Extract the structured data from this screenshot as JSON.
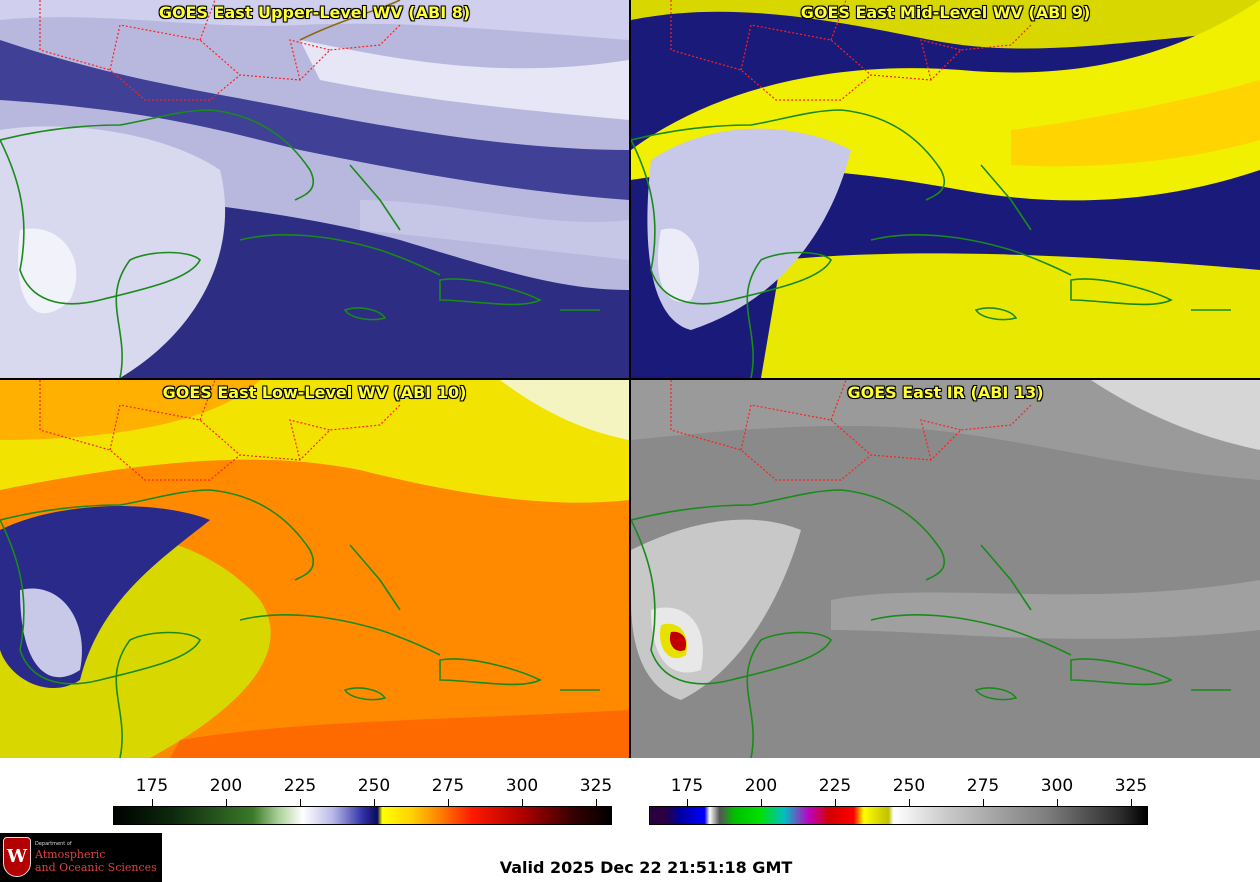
{
  "panels": [
    {
      "title": "GOES East Upper-Level WV (ABI 8)"
    },
    {
      "title": "GOES East Mid-Level WV (ABI 9)"
    },
    {
      "title": "GOES East Low-Level WV (ABI 10)"
    },
    {
      "title": "GOES East IR (ABI 13)"
    }
  ],
  "colorbar_wv": {
    "ticks": [
      "175",
      "200",
      "225",
      "250",
      "275",
      "300",
      "325"
    ]
  },
  "colorbar_ir": {
    "ticks": [
      "175",
      "200",
      "225",
      "250",
      "275",
      "300",
      "325"
    ]
  },
  "logo": {
    "dept": "Department of",
    "line1": "Atmospheric",
    "line2": "and Oceanic Sciences",
    "crest": "W"
  },
  "valid_time": "Valid 2025 Dec 22 21:51:18 GMT",
  "colors": {
    "title": "#ffff33",
    "state_borders": "#ff2020",
    "coastlines": "#1a8a1a"
  }
}
